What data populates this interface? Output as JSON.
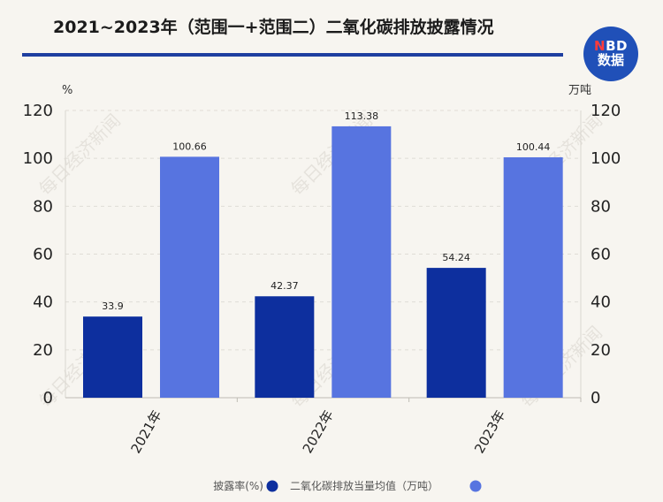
{
  "header": {
    "title": "2021~2023年（范围一+范围二）二氧化碳排放披露情况",
    "logo_top": "NBD",
    "logo_bottom": "数据"
  },
  "watermark": "每日经济新闻",
  "colors": {
    "series1": "#0d2f9e",
    "series2": "#5774e0",
    "title_rule": "#1f3fa0",
    "logo": "#2050b8"
  },
  "chart_data": {
    "type": "bar",
    "categories": [
      "2021年",
      "2022年",
      "2023年"
    ],
    "series": [
      {
        "name": "披露率(%)",
        "values": [
          33.9,
          42.37,
          54.24
        ],
        "labels": [
          "33.9",
          "42.37",
          "54.24"
        ],
        "axis": "left"
      },
      {
        "name": "二氧化碳排放当量均值（万吨）",
        "values": [
          100.66,
          113.38,
          100.44
        ],
        "labels": [
          "100.66",
          "113.38",
          "100.44"
        ],
        "axis": "right"
      }
    ],
    "y_left": {
      "unit": "%",
      "range": [
        0,
        120
      ],
      "ticks": [
        "0",
        "20",
        "40",
        "60",
        "80",
        "100",
        "120"
      ]
    },
    "y_right": {
      "unit": "万吨",
      "range": [
        0,
        120
      ],
      "ticks": [
        "0",
        "20",
        "40",
        "60",
        "80",
        "100",
        "120"
      ]
    },
    "grid": true,
    "legend_position": "bottom"
  }
}
